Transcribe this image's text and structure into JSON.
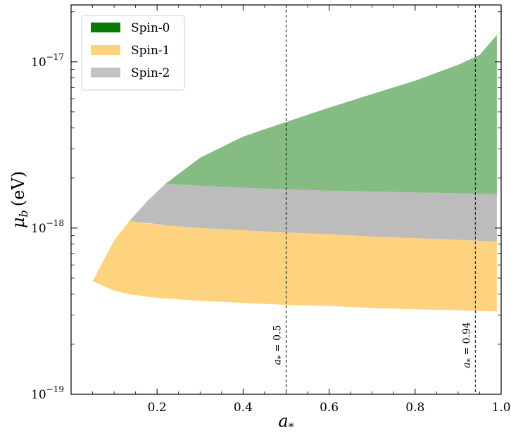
{
  "chart_data": {
    "type": "area",
    "xlabel_main": "a",
    "xlabel_sub": "*",
    "ylabel_main": "μ",
    "ylabel_sub": "b",
    "ylabel_unit": "(eV)",
    "xlim": [
      0.0,
      1.0
    ],
    "ylim": [
      1e-19,
      2.2e-17
    ],
    "y_scale": "log",
    "x_ticks": [
      0.2,
      0.4,
      0.6,
      0.8,
      1.0
    ],
    "x_tick_labels": [
      "0.2",
      "0.4",
      "0.6",
      "0.8",
      "1.0"
    ],
    "y_ticks": [
      {
        "value": 1e-19,
        "base": "10",
        "exp": "−19"
      },
      {
        "value": 1e-18,
        "base": "10",
        "exp": "−18"
      },
      {
        "value": 1e-17,
        "base": "10",
        "exp": "−17"
      }
    ],
    "legend_position": "top-left",
    "series": [
      {
        "name": "Spin-1",
        "color": "#fdb52c",
        "opacity": 0.6,
        "x": [
          0.05,
          0.1,
          0.135,
          0.2,
          0.3,
          0.4,
          0.5,
          0.6,
          0.7,
          0.8,
          0.9,
          0.99
        ],
        "upper": [
          4.8e-19,
          8.4e-19,
          1.1e-18,
          1.05e-18,
          1e-18,
          9.7e-19,
          9.4e-19,
          9.2e-19,
          8.9e-19,
          8.7e-19,
          8.5e-19,
          8.3e-19
        ],
        "lower": [
          4.8e-19,
          4.2e-19,
          4e-19,
          3.8e-19,
          3.65e-19,
          3.55e-19,
          3.45e-19,
          3.4e-19,
          3.3e-19,
          3.25e-19,
          3.2e-19,
          3.15e-19
        ]
      },
      {
        "name": "Spin-2",
        "color": "#8f8f8f",
        "opacity": 0.6,
        "x": [
          0.135,
          0.18,
          0.22,
          0.3,
          0.4,
          0.5,
          0.6,
          0.7,
          0.8,
          0.9,
          0.99
        ],
        "upper": [
          1.1e-18,
          1.48e-18,
          1.85e-18,
          1.8e-18,
          1.75e-18,
          1.71e-18,
          1.68e-18,
          1.66e-18,
          1.64e-18,
          1.62e-18,
          1.6e-18
        ],
        "lower": [
          1.1e-18,
          1.07e-18,
          1.04e-18,
          1e-18,
          9.7e-19,
          9.4e-19,
          9.2e-19,
          8.9e-19,
          8.7e-19,
          8.5e-19,
          8.3e-19
        ]
      },
      {
        "name": "Spin-0",
        "color": "#097a09",
        "opacity": 0.5,
        "x": [
          0.22,
          0.3,
          0.4,
          0.5,
          0.6,
          0.7,
          0.8,
          0.9,
          0.95,
          0.99
        ],
        "upper": [
          1.85e-18,
          2.65e-18,
          3.55e-18,
          4.35e-18,
          5.3e-18,
          6.4e-18,
          7.7e-18,
          9.6e-18,
          1.1e-17,
          1.45e-17
        ],
        "lower": [
          1.85e-18,
          1.8e-18,
          1.75e-18,
          1.71e-18,
          1.68e-18,
          1.66e-18,
          1.64e-18,
          1.62e-18,
          1.61e-18,
          1.6e-18
        ]
      }
    ],
    "vlines": [
      {
        "x": 0.5,
        "label": "a* = 0.5",
        "label_sym": "a",
        "label_sub": "*",
        "label_rest": " = 0.5"
      },
      {
        "x": 0.94,
        "label": "a* = 0.94",
        "label_sym": "a",
        "label_sub": "*",
        "label_rest": " = 0.94"
      }
    ],
    "grid": false
  }
}
